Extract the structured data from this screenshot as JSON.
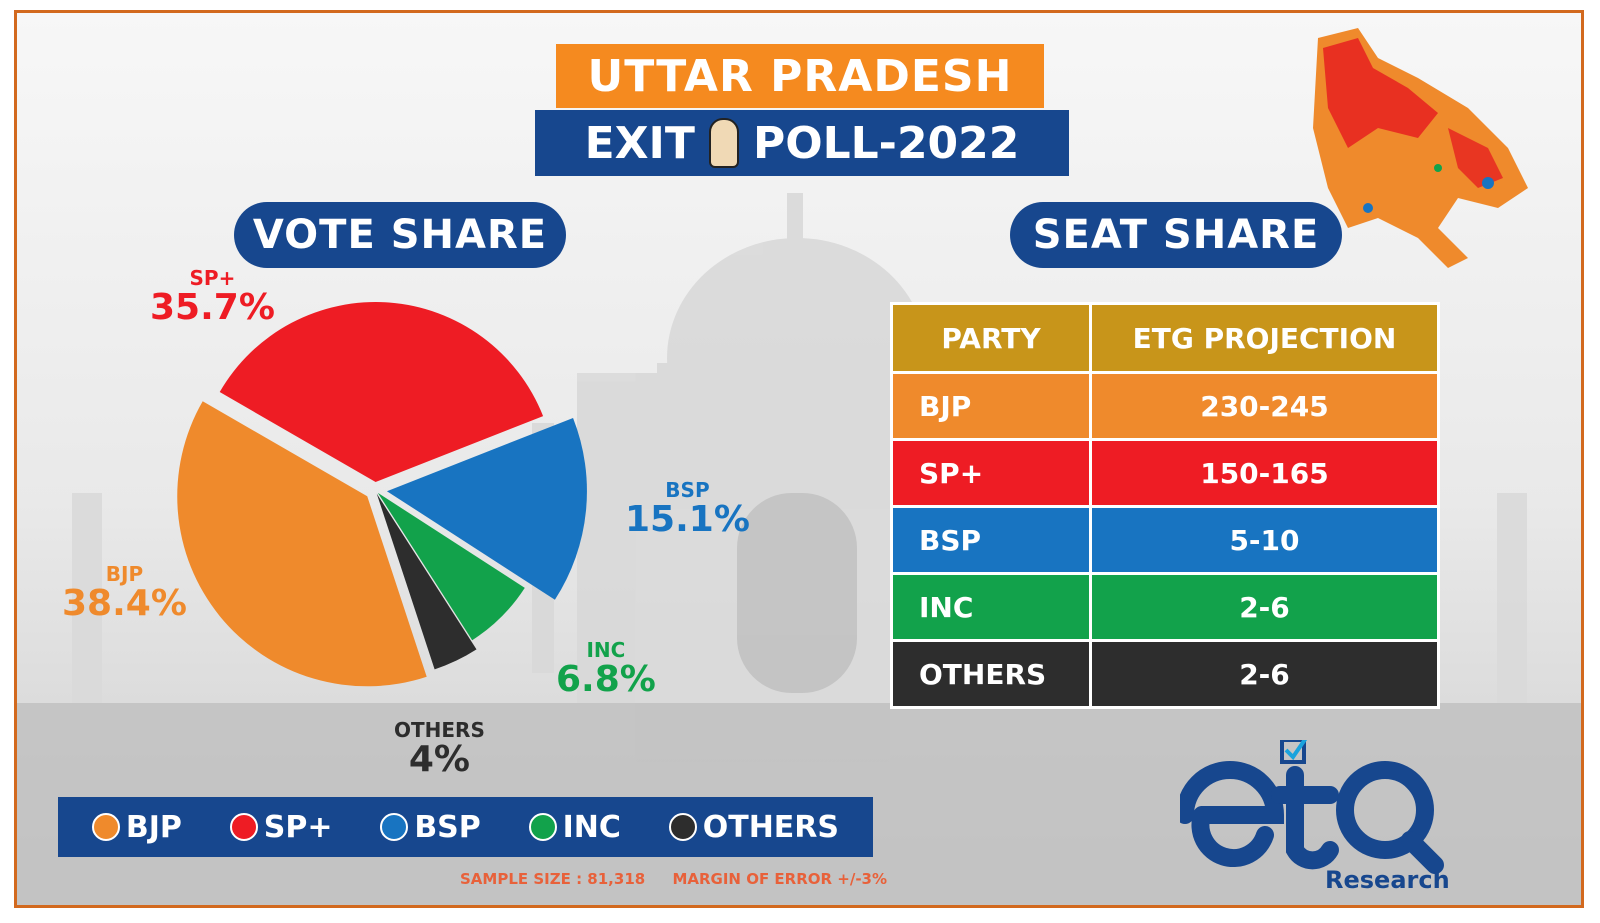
{
  "title": {
    "line1": "UTTAR PRADESH",
    "line2_left": "EXIT",
    "line2_right": "POLL-2022"
  },
  "vote_share_heading": "VOTE SHARE",
  "seat_share_heading": "SEAT SHARE",
  "colors": {
    "BJP": "#ef8a2c",
    "SP+": "#ee1c24",
    "BSP": "#1874c1",
    "INC": "#12a24b",
    "OTHERS": "#2d2d2d",
    "navy": "#17478e",
    "table_header": "#c8951a"
  },
  "chart_data": [
    {
      "type": "pie",
      "title": "VOTE SHARE",
      "slices": [
        {
          "label": "BJP",
          "value": 38.4,
          "display": "38.4%"
        },
        {
          "label": "SP+",
          "value": 35.7,
          "display": "35.7%"
        },
        {
          "label": "BSP",
          "value": 15.1,
          "display": "15.1%"
        },
        {
          "label": "INC",
          "value": 6.8,
          "display": "6.8%"
        },
        {
          "label": "OTHERS",
          "value": 4,
          "display": "4%"
        }
      ],
      "legend": [
        "BJP",
        "SP+",
        "BSP",
        "INC",
        "OTHERS"
      ],
      "legend_placement": "bottom"
    },
    {
      "type": "table",
      "title": "SEAT SHARE",
      "columns": [
        "PARTY",
        "ETG PROJECTION"
      ],
      "rows": [
        [
          "BJP",
          "230-245"
        ],
        [
          "SP+",
          "150-165"
        ],
        [
          "BSP",
          "5-10"
        ],
        [
          "INC",
          "2-6"
        ],
        [
          "OTHERS",
          "2-6"
        ]
      ]
    }
  ],
  "footer": {
    "sample": "SAMPLE SIZE : 81,318",
    "margin": "MARGIN OF ERROR +/-3%"
  },
  "logo": {
    "wordmark": "etg",
    "subtitle": "Research"
  }
}
